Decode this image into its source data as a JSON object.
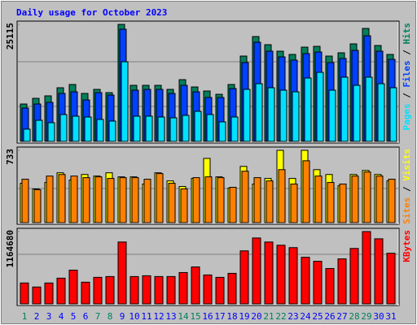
{
  "title": "Daily usage for October 2023",
  "chart_data": [
    {
      "type": "bar",
      "ylim": [
        0,
        25115
      ],
      "yticks": [
        25115
      ],
      "series": [
        {
          "name": "Hits",
          "color": "#00805c",
          "values": [
            8020,
            9240,
            9770,
            11510,
            12210,
            10290,
            11160,
            10460,
            25115,
            12030,
            12030,
            12030,
            11160,
            13250,
            11680,
            10810,
            10110,
            12210,
            18310,
            22500,
            20750,
            19360,
            18660,
            20230,
            20400,
            18310,
            19010,
            20930,
            24240,
            20580,
            18660
          ]
        },
        {
          "name": "Files",
          "color": "#0040ff",
          "values": [
            7150,
            8020,
            8370,
            10290,
            10640,
            8890,
            10460,
            9940,
            24070,
            10990,
            11160,
            11160,
            10290,
            12030,
            10640,
            9420,
            9420,
            11340,
            16920,
            21280,
            19360,
            18140,
            17440,
            18840,
            19180,
            16920,
            17790,
            19530,
            22670,
            19360,
            17610
          ]
        },
        {
          "name": "Pages",
          "color": "#00e0ff",
          "values": [
            2620,
            4530,
            4010,
            5760,
            5410,
            5230,
            4710,
            4360,
            17090,
            5410,
            5410,
            5230,
            5060,
            5580,
            6450,
            5760,
            4190,
            5230,
            11160,
            12380,
            11510,
            10990,
            10640,
            13600,
            14820,
            10990,
            13780,
            12030,
            13780,
            12380,
            11510
          ]
        }
      ]
    },
    {
      "type": "bar",
      "ylim": [
        0,
        733
      ],
      "yticks": [
        733
      ],
      "series": [
        {
          "name": "Visits",
          "color": "#ffff00",
          "values": [
            399,
            342,
            407,
            505,
            431,
            488,
            472,
            505,
            464,
            464,
            391,
            505,
            423,
            366,
            448,
            651,
            464,
            350,
            570,
            391,
            448,
            733,
            448,
            733,
            537,
            488,
            374,
            488,
            529,
            488,
            423
          ]
        },
        {
          "name": "Sites",
          "color": "#ff8000",
          "values": [
            440,
            334,
            472,
            488,
            472,
            456,
            464,
            448,
            456,
            456,
            440,
            497,
            399,
            342,
            456,
            464,
            456,
            358,
            521,
            456,
            423,
            537,
            391,
            627,
            472,
            407,
            391,
            472,
            513,
            472,
            440
          ]
        }
      ]
    },
    {
      "type": "bar",
      "ylim": [
        0,
        1164680
      ],
      "yticks": [
        1164680
      ],
      "categories": [
        "1",
        "2",
        "3",
        "4",
        "5",
        "6",
        "7",
        "8",
        "9",
        "10",
        "11",
        "12",
        "13",
        "14",
        "15",
        "16",
        "17",
        "18",
        "19",
        "20",
        "21",
        "22",
        "23",
        "24",
        "25",
        "26",
        "27",
        "28",
        "29",
        "30",
        "31"
      ],
      "category_colors": [
        "#00805c",
        "#0000ff",
        "#0000ff",
        "#0000ff",
        "#0000ff",
        "#0000ff",
        "#00805c",
        "#00805c",
        "#0000ff",
        "#0000ff",
        "#0000ff",
        "#0000ff",
        "#0000ff",
        "#00805c",
        "#00805c",
        "#0000ff",
        "#0000ff",
        "#0000ff",
        "#0000ff",
        "#0000ff",
        "#00805c",
        "#00805c",
        "#0000ff",
        "#0000ff",
        "#0000ff",
        "#0000ff",
        "#0000ff",
        "#00805c",
        "#00805c",
        "#0000ff",
        "#0000ff"
      ],
      "series": [
        {
          "name": "KBytes",
          "color": "#ff0000",
          "values": [
            336470,
            271760,
            336470,
            414110,
            543520,
            349410,
            427050,
            439990,
            996460,
            439990,
            452940,
            439990,
            439990,
            504700,
            595290,
            465880,
            427050,
            491760,
            854110,
            1061160,
            996460,
            944690,
            905870,
            750580,
            685870,
            569400,
            724700,
            892930,
            1164680,
            1048220,
            815280
          ]
        }
      ]
    }
  ]
}
